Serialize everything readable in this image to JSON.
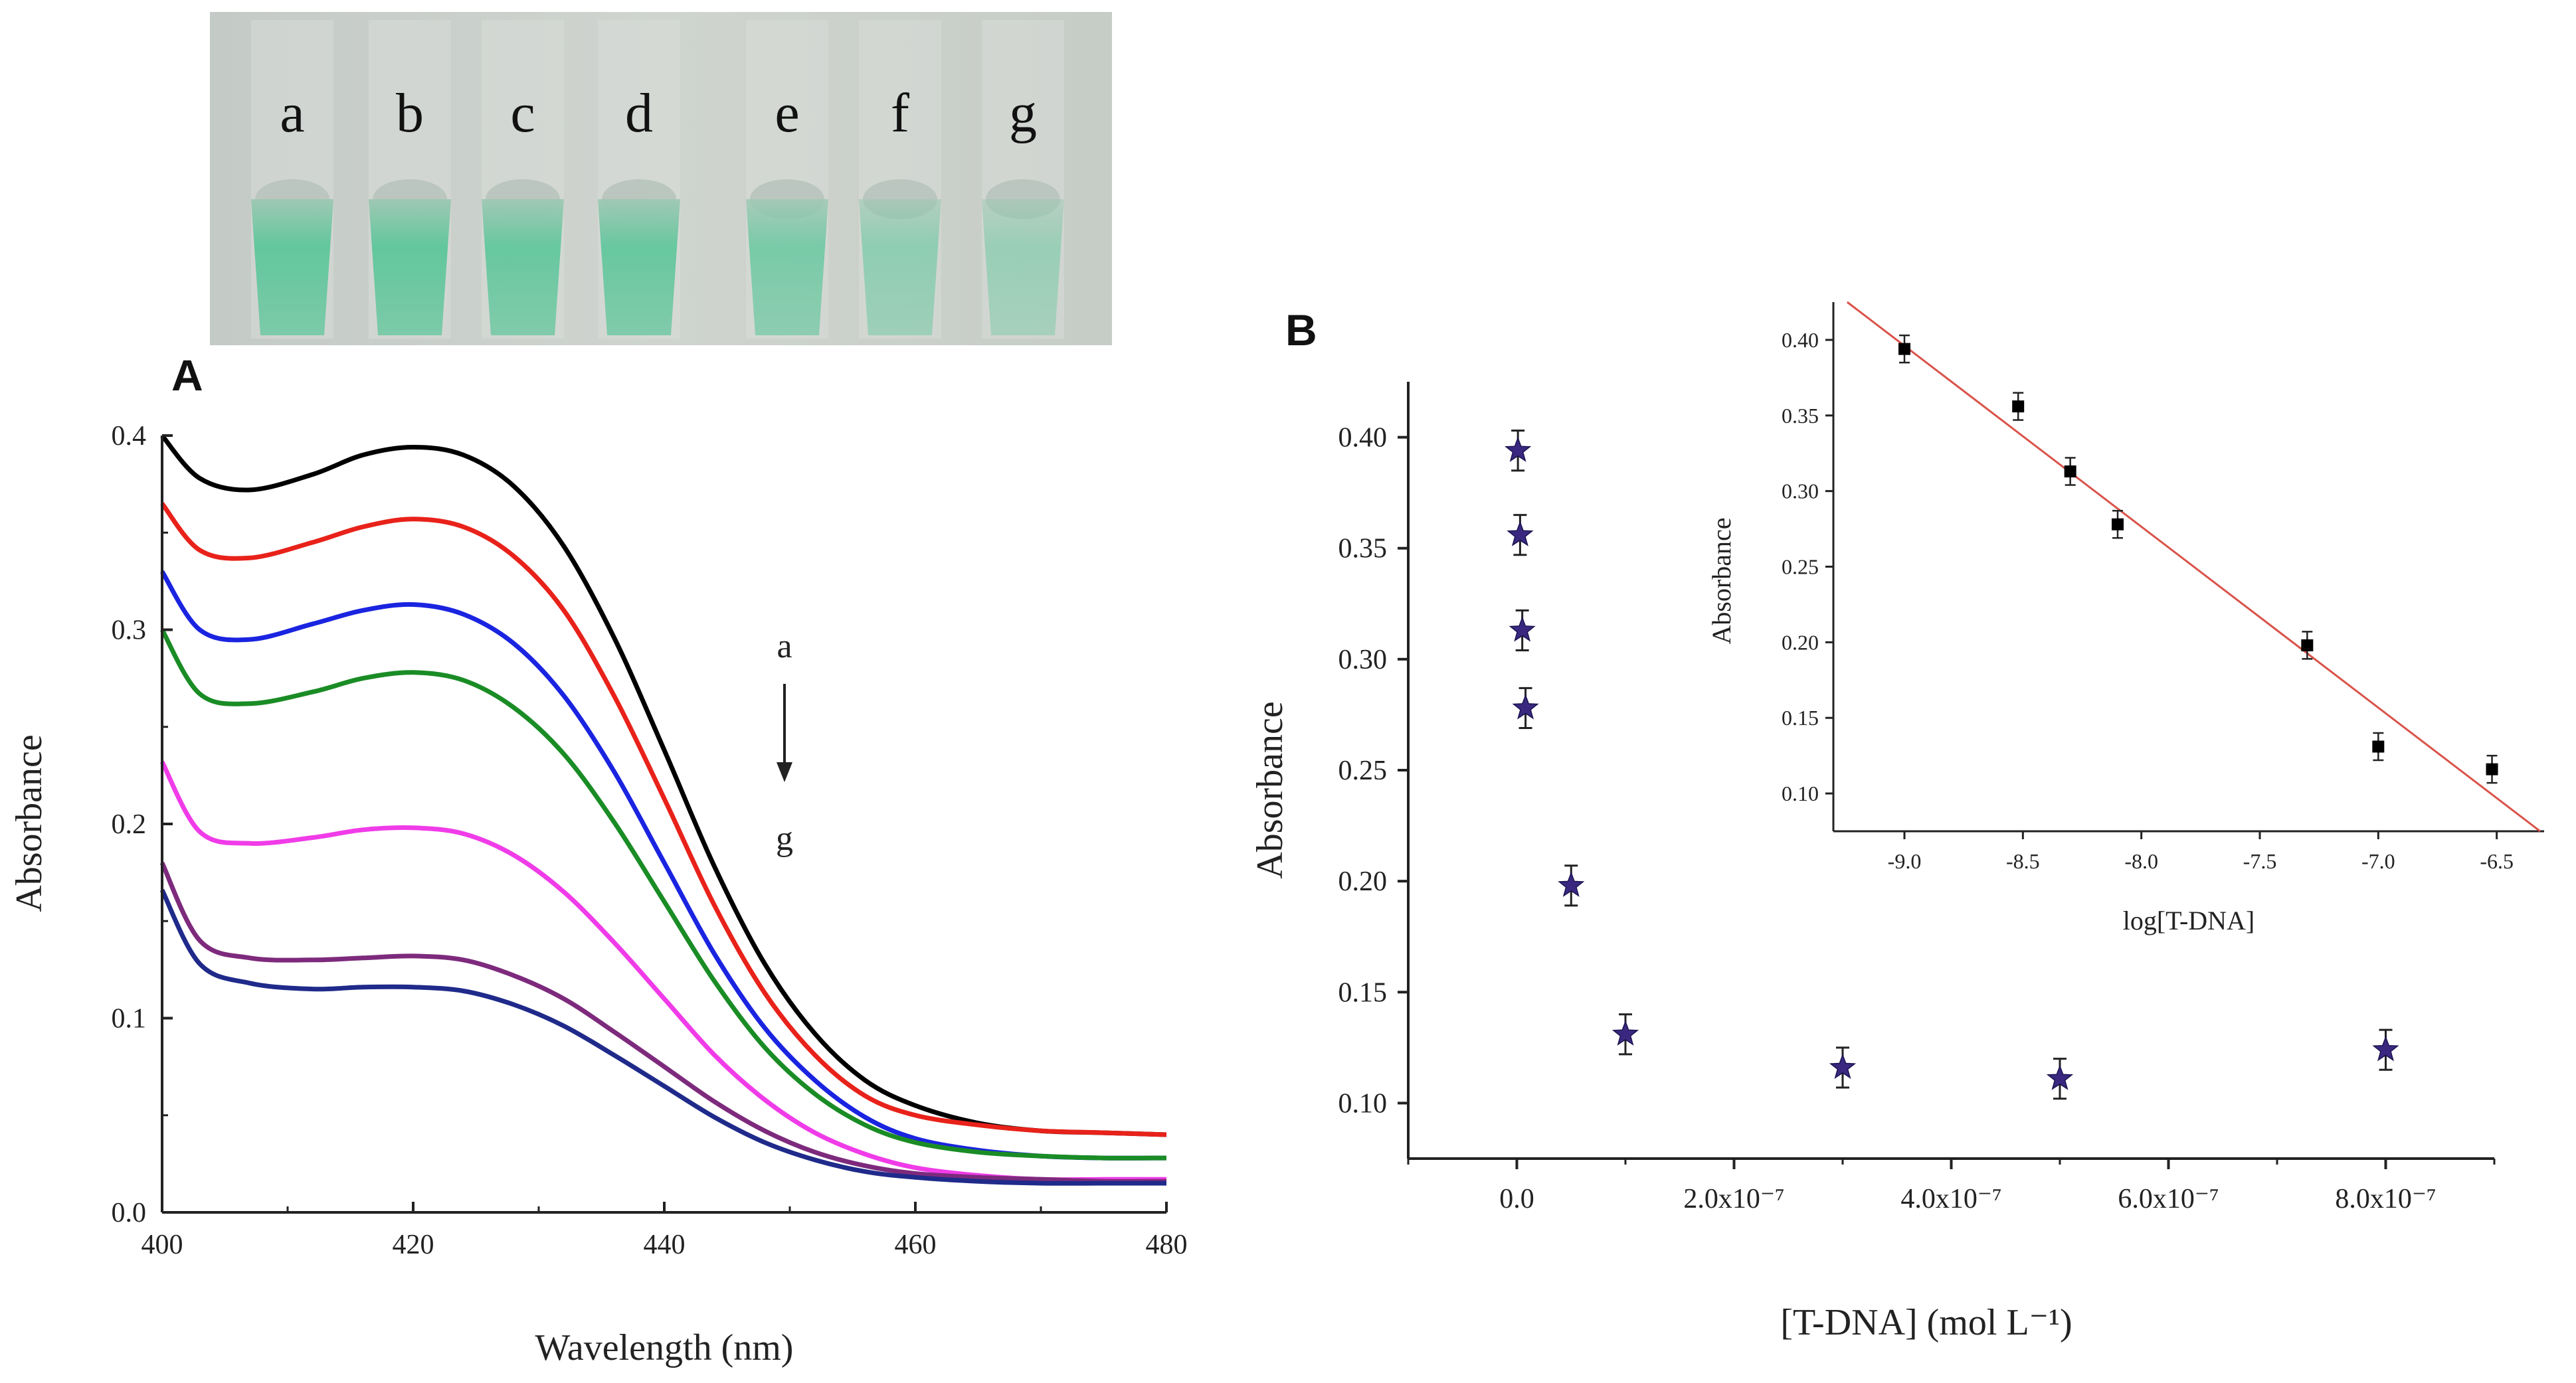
{
  "photo": {
    "vial_labels": [
      "a",
      "b",
      "c",
      "d",
      "e",
      "f",
      "g"
    ],
    "solution_color": "#5fc79a",
    "background_color": "#c9cfc9"
  },
  "panel_labels": {
    "A": "A",
    "B": "B"
  },
  "chart_data": [
    {
      "id": "A",
      "type": "line",
      "title": "",
      "xlabel": "Wavelength (nm)",
      "ylabel": "Absorbance",
      "xlim": [
        400,
        480
      ],
      "ylim": [
        0.0,
        0.4
      ],
      "xticks": [
        400,
        420,
        440,
        460,
        480
      ],
      "xtick_labels": [
        "400",
        "420",
        "440",
        "460",
        "480"
      ],
      "yticks": [
        0.0,
        0.1,
        0.2,
        0.3,
        0.4
      ],
      "ytick_labels": [
        "0.0",
        "0.1",
        "0.2",
        "0.3",
        "0.4"
      ],
      "grid": false,
      "arrow_annotation": {
        "from": "a",
        "to": "g"
      },
      "x": [
        400,
        403,
        407,
        412,
        416,
        420,
        424,
        428,
        432,
        436,
        440,
        444,
        448,
        452,
        456,
        460,
        465,
        470,
        475,
        480
      ],
      "series": [
        {
          "name": "a",
          "color": "#000000",
          "values": [
            0.4,
            0.378,
            0.372,
            0.38,
            0.39,
            0.394,
            0.39,
            0.374,
            0.343,
            0.296,
            0.238,
            0.178,
            0.128,
            0.092,
            0.068,
            0.055,
            0.046,
            0.042,
            0.041,
            0.04
          ]
        },
        {
          "name": "b",
          "color": "#e8221a",
          "values": [
            0.365,
            0.341,
            0.337,
            0.345,
            0.353,
            0.357,
            0.353,
            0.338,
            0.31,
            0.266,
            0.213,
            0.158,
            0.113,
            0.081,
            0.06,
            0.05,
            0.045,
            0.042,
            0.041,
            0.04
          ]
        },
        {
          "name": "c",
          "color": "#1a24e0",
          "values": [
            0.33,
            0.3,
            0.295,
            0.303,
            0.31,
            0.313,
            0.308,
            0.293,
            0.266,
            0.227,
            0.18,
            0.133,
            0.095,
            0.068,
            0.049,
            0.038,
            0.032,
            0.029,
            0.028,
            0.028
          ]
        },
        {
          "name": "d",
          "color": "#1a8c25",
          "values": [
            0.3,
            0.267,
            0.262,
            0.268,
            0.275,
            0.278,
            0.274,
            0.26,
            0.236,
            0.201,
            0.16,
            0.119,
            0.085,
            0.061,
            0.045,
            0.036,
            0.031,
            0.029,
            0.028,
            0.028
          ]
        },
        {
          "name": "e",
          "color": "#f03ce8",
          "values": [
            0.232,
            0.196,
            0.19,
            0.193,
            0.197,
            0.198,
            0.195,
            0.184,
            0.165,
            0.139,
            0.11,
            0.081,
            0.058,
            0.041,
            0.03,
            0.023,
            0.019,
            0.017,
            0.017,
            0.017
          ]
        },
        {
          "name": "f",
          "color": "#7d2a7d",
          "values": [
            0.18,
            0.14,
            0.131,
            0.13,
            0.131,
            0.132,
            0.13,
            0.122,
            0.11,
            0.093,
            0.075,
            0.057,
            0.042,
            0.031,
            0.024,
            0.02,
            0.018,
            0.017,
            0.016,
            0.016
          ]
        },
        {
          "name": "g",
          "color": "#1f2a8a",
          "values": [
            0.166,
            0.128,
            0.118,
            0.115,
            0.116,
            0.116,
            0.114,
            0.107,
            0.096,
            0.081,
            0.065,
            0.049,
            0.036,
            0.027,
            0.021,
            0.018,
            0.016,
            0.015,
            0.015,
            0.015
          ]
        }
      ]
    },
    {
      "id": "B",
      "type": "scatter",
      "title": "",
      "xlabel": "[T-DNA] (mol L⁻¹)",
      "ylabel": "Absorbance",
      "xlim": [
        -1e-07,
        9e-07
      ],
      "ylim": [
        0.075,
        0.425
      ],
      "xticks": [
        0,
        2e-07,
        4e-07,
        6e-07,
        8e-07
      ],
      "xtick_labels": [
        "0.0",
        "2.0x10⁻⁷",
        "4.0x10⁻⁷",
        "6.0x10⁻⁷",
        "8.0x10⁻⁷"
      ],
      "yticks": [
        0.1,
        0.15,
        0.2,
        0.25,
        0.3,
        0.35,
        0.4
      ],
      "ytick_labels": [
        "0.10",
        "0.15",
        "0.20",
        "0.25",
        "0.30",
        "0.35",
        "0.40"
      ],
      "grid": false,
      "marker": "star",
      "marker_color": "#3a2880",
      "x": [
        1e-09,
        3e-09,
        5e-09,
        8e-09,
        5e-08,
        1e-07,
        3e-07,
        5e-07,
        8e-07
      ],
      "y": [
        0.394,
        0.356,
        0.313,
        0.278,
        0.198,
        0.131,
        0.116,
        0.111,
        0.124
      ],
      "yerr": [
        0.009,
        0.009,
        0.009,
        0.009,
        0.009,
        0.009,
        0.009,
        0.009,
        0.009
      ]
    },
    {
      "id": "B-inset",
      "type": "scatter",
      "title": "",
      "xlabel": "log[T-DNA]",
      "ylabel": "Absorbance",
      "xlim": [
        -9.3,
        -6.3
      ],
      "ylim": [
        0.075,
        0.425
      ],
      "xticks": [
        -9.0,
        -8.5,
        -8.0,
        -7.5,
        -7.0,
        -6.5
      ],
      "xtick_labels": [
        "-9.0",
        "-8.5",
        "-8.0",
        "-7.5",
        "-7.0",
        "-6.5"
      ],
      "yticks": [
        0.1,
        0.15,
        0.2,
        0.25,
        0.3,
        0.35,
        0.4
      ],
      "ytick_labels": [
        "0.10",
        "0.15",
        "0.20",
        "0.25",
        "0.30",
        "0.35",
        "0.40"
      ],
      "grid": false,
      "marker": "square",
      "marker_color": "#000000",
      "x": [
        -9.0,
        -8.52,
        -8.3,
        -8.1,
        -7.3,
        -7.0,
        -6.52
      ],
      "y": [
        0.394,
        0.356,
        0.313,
        0.278,
        0.198,
        0.131,
        0.116
      ],
      "yerr": [
        0.009,
        0.009,
        0.009,
        0.009,
        0.009,
        0.009,
        0.009
      ],
      "fit_line": {
        "color": "#d9534a",
        "x": [
          -9.3,
          -6.3
        ],
        "y": [
          0.432,
          0.073
        ]
      }
    }
  ]
}
